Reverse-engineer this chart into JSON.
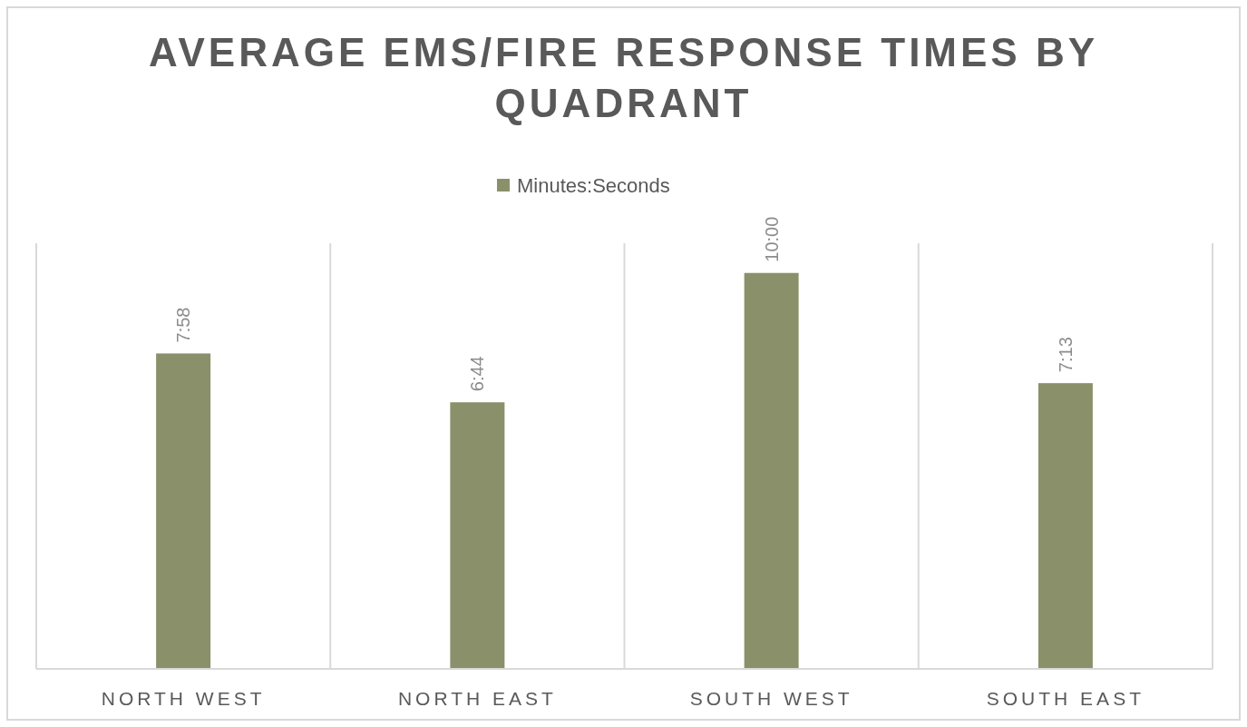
{
  "chart_data": {
    "type": "bar",
    "title": "AVERAGE EMS/FIRE RESPONSE TIMES BY QUADRANT",
    "categories": [
      "NORTH WEST",
      "NORTH EAST",
      "SOUTH WEST",
      "SOUTH EAST"
    ],
    "series": [
      {
        "name": "Minutes:Seconds",
        "color": "#8a916a",
        "values": [
          478,
          404,
          600,
          433
        ],
        "value_labels": [
          "7:58",
          "6:44",
          "10:00",
          "7:13"
        ]
      }
    ],
    "grid": "x",
    "legend": "top"
  }
}
